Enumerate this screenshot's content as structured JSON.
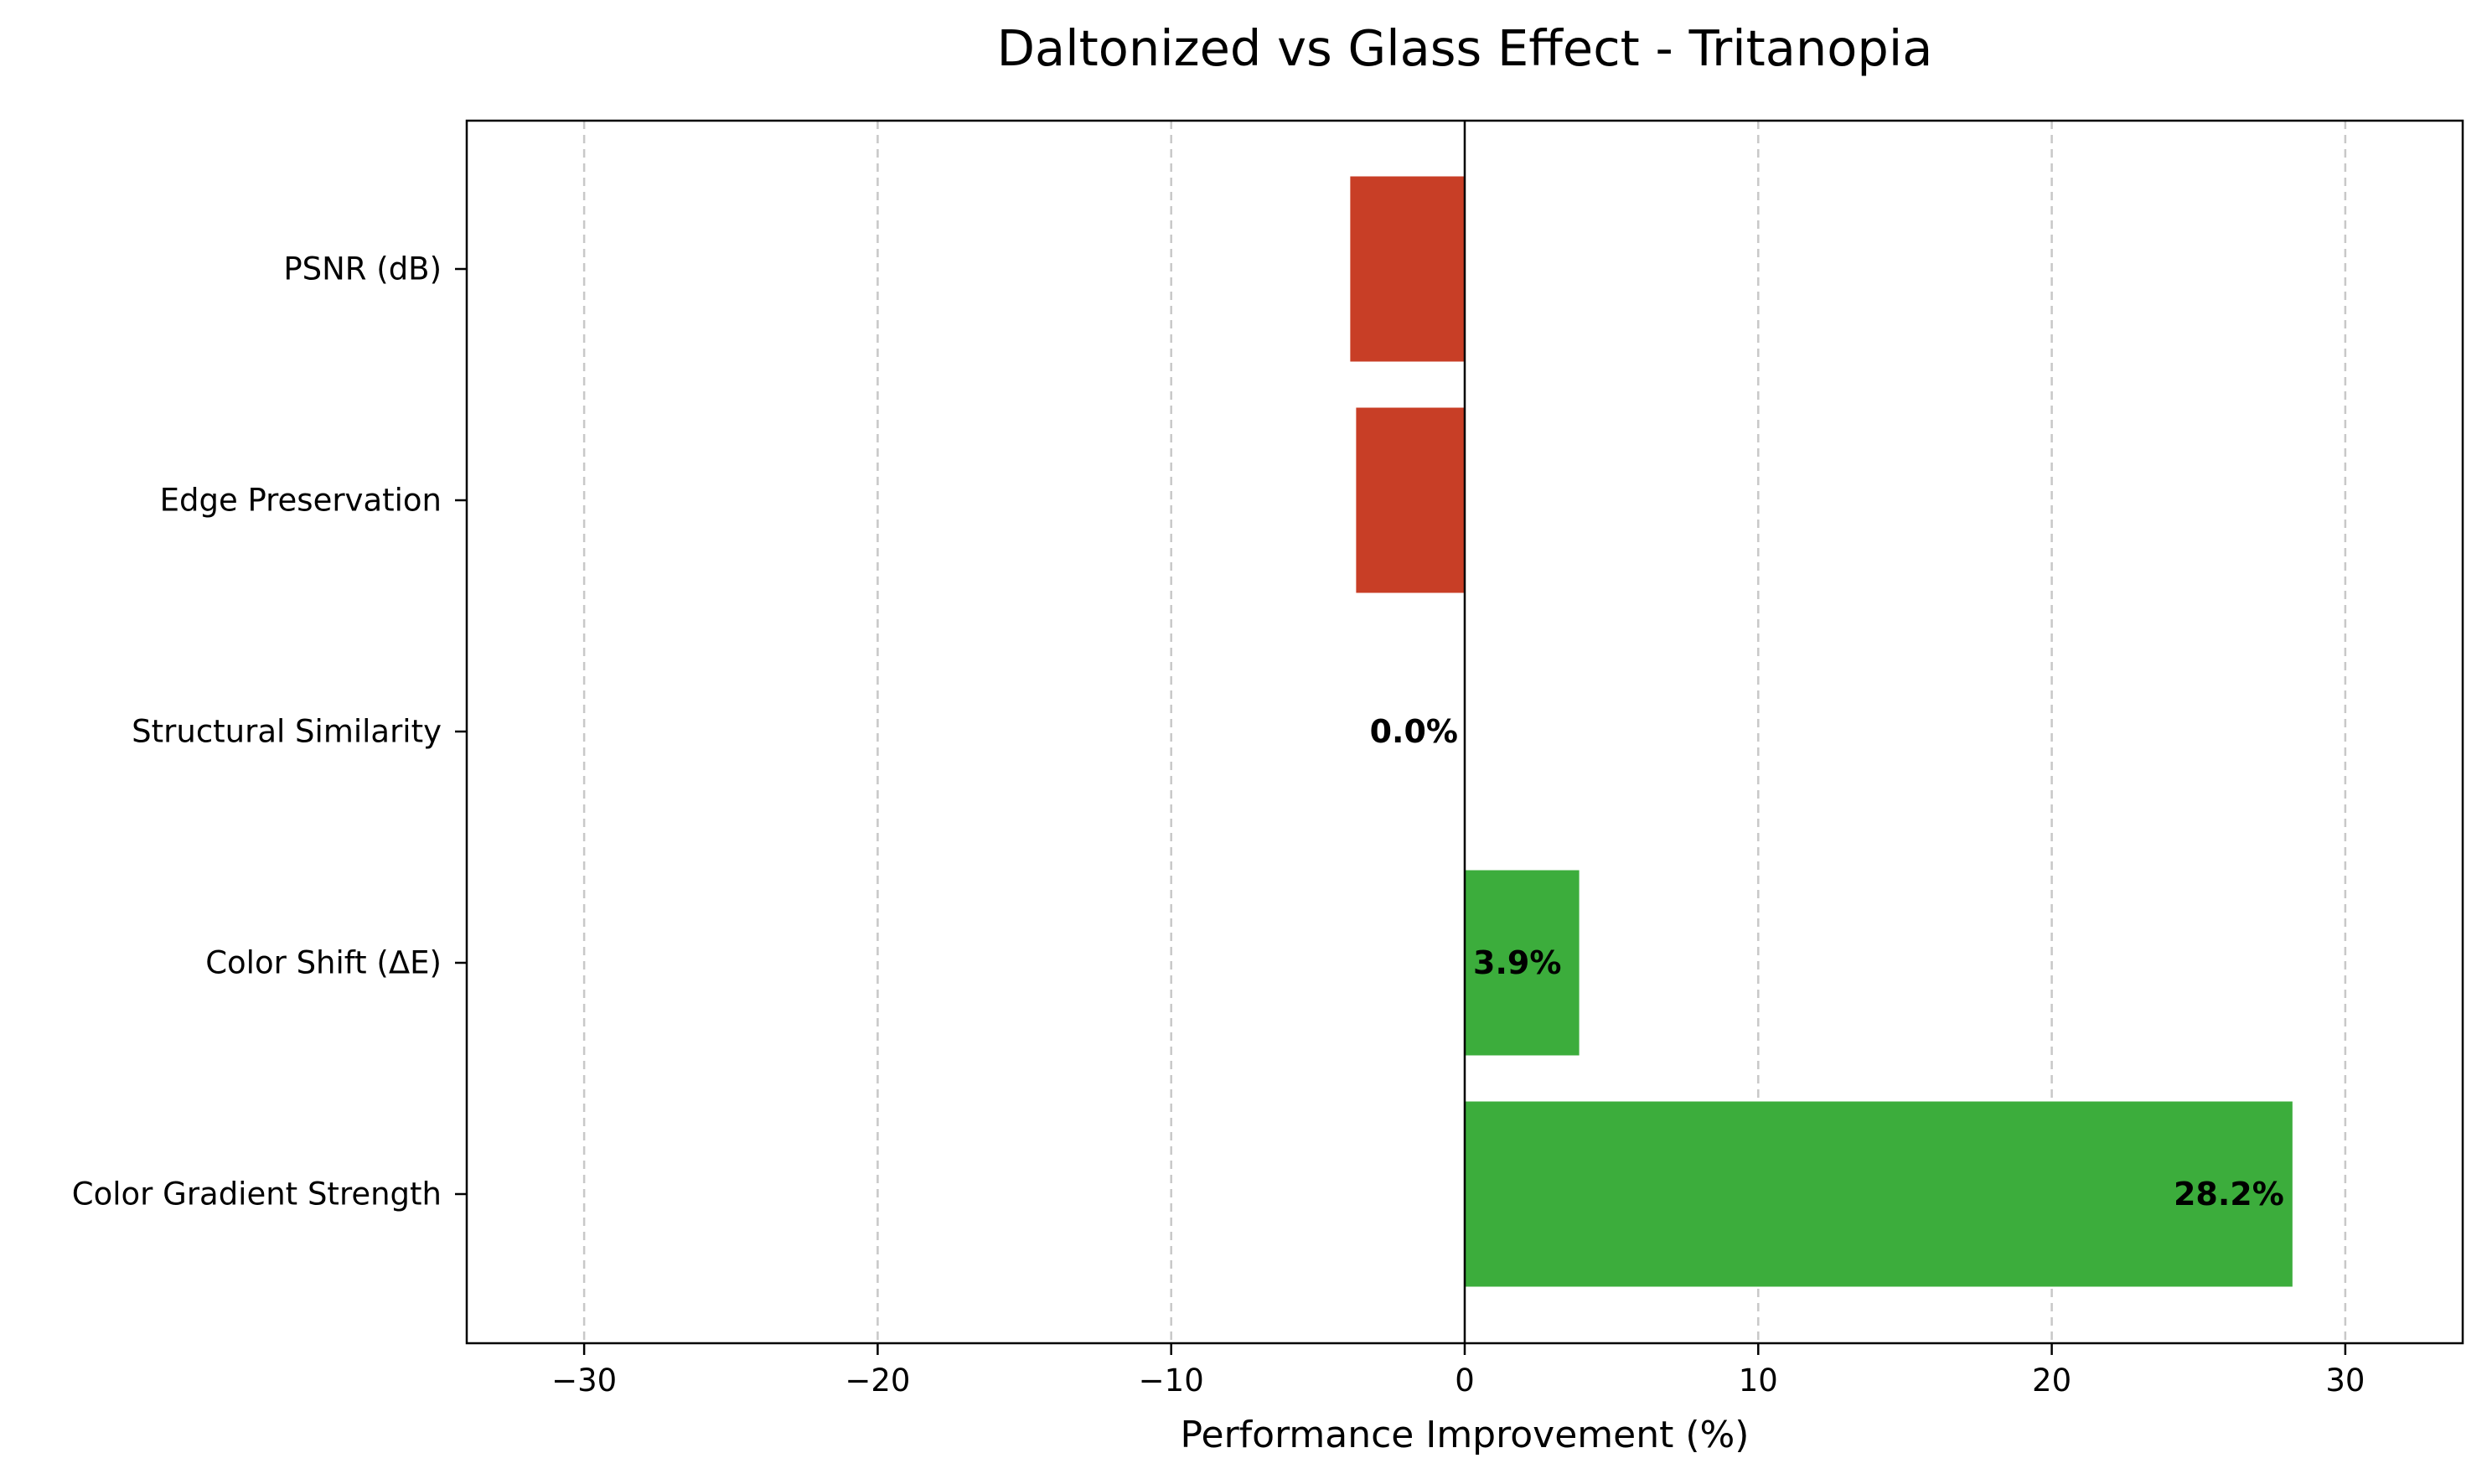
{
  "chart_data": {
    "type": "bar",
    "orientation": "horizontal",
    "title": "Daltonized vs Glass Effect - Tritanopia",
    "xlabel": "Performance Improvement (%)",
    "ylabel": "",
    "xlim": [
      -34,
      34
    ],
    "xticks": [
      -30,
      -20,
      -10,
      0,
      10,
      20,
      30
    ],
    "xtick_labels": [
      "−30",
      "−20",
      "−10",
      "0",
      "10",
      "20",
      "30"
    ],
    "grid": {
      "x": true,
      "y": false,
      "style": "dashed"
    },
    "categories": [
      "PSNR (dB)",
      "Edge Preservation",
      "Structural Similarity",
      "Color Shift (ΔE)",
      "Color Gradient Strength"
    ],
    "values": [
      -3.9,
      -3.7,
      0.0,
      3.9,
      28.2
    ],
    "data_labels": [
      "",
      "",
      "0.0%",
      "3.9%",
      "28.2%"
    ],
    "colors": {
      "negative": "#c83e26",
      "positive": "#3cad3c",
      "grid": "#c8c8c8",
      "axis": "#000000"
    }
  }
}
